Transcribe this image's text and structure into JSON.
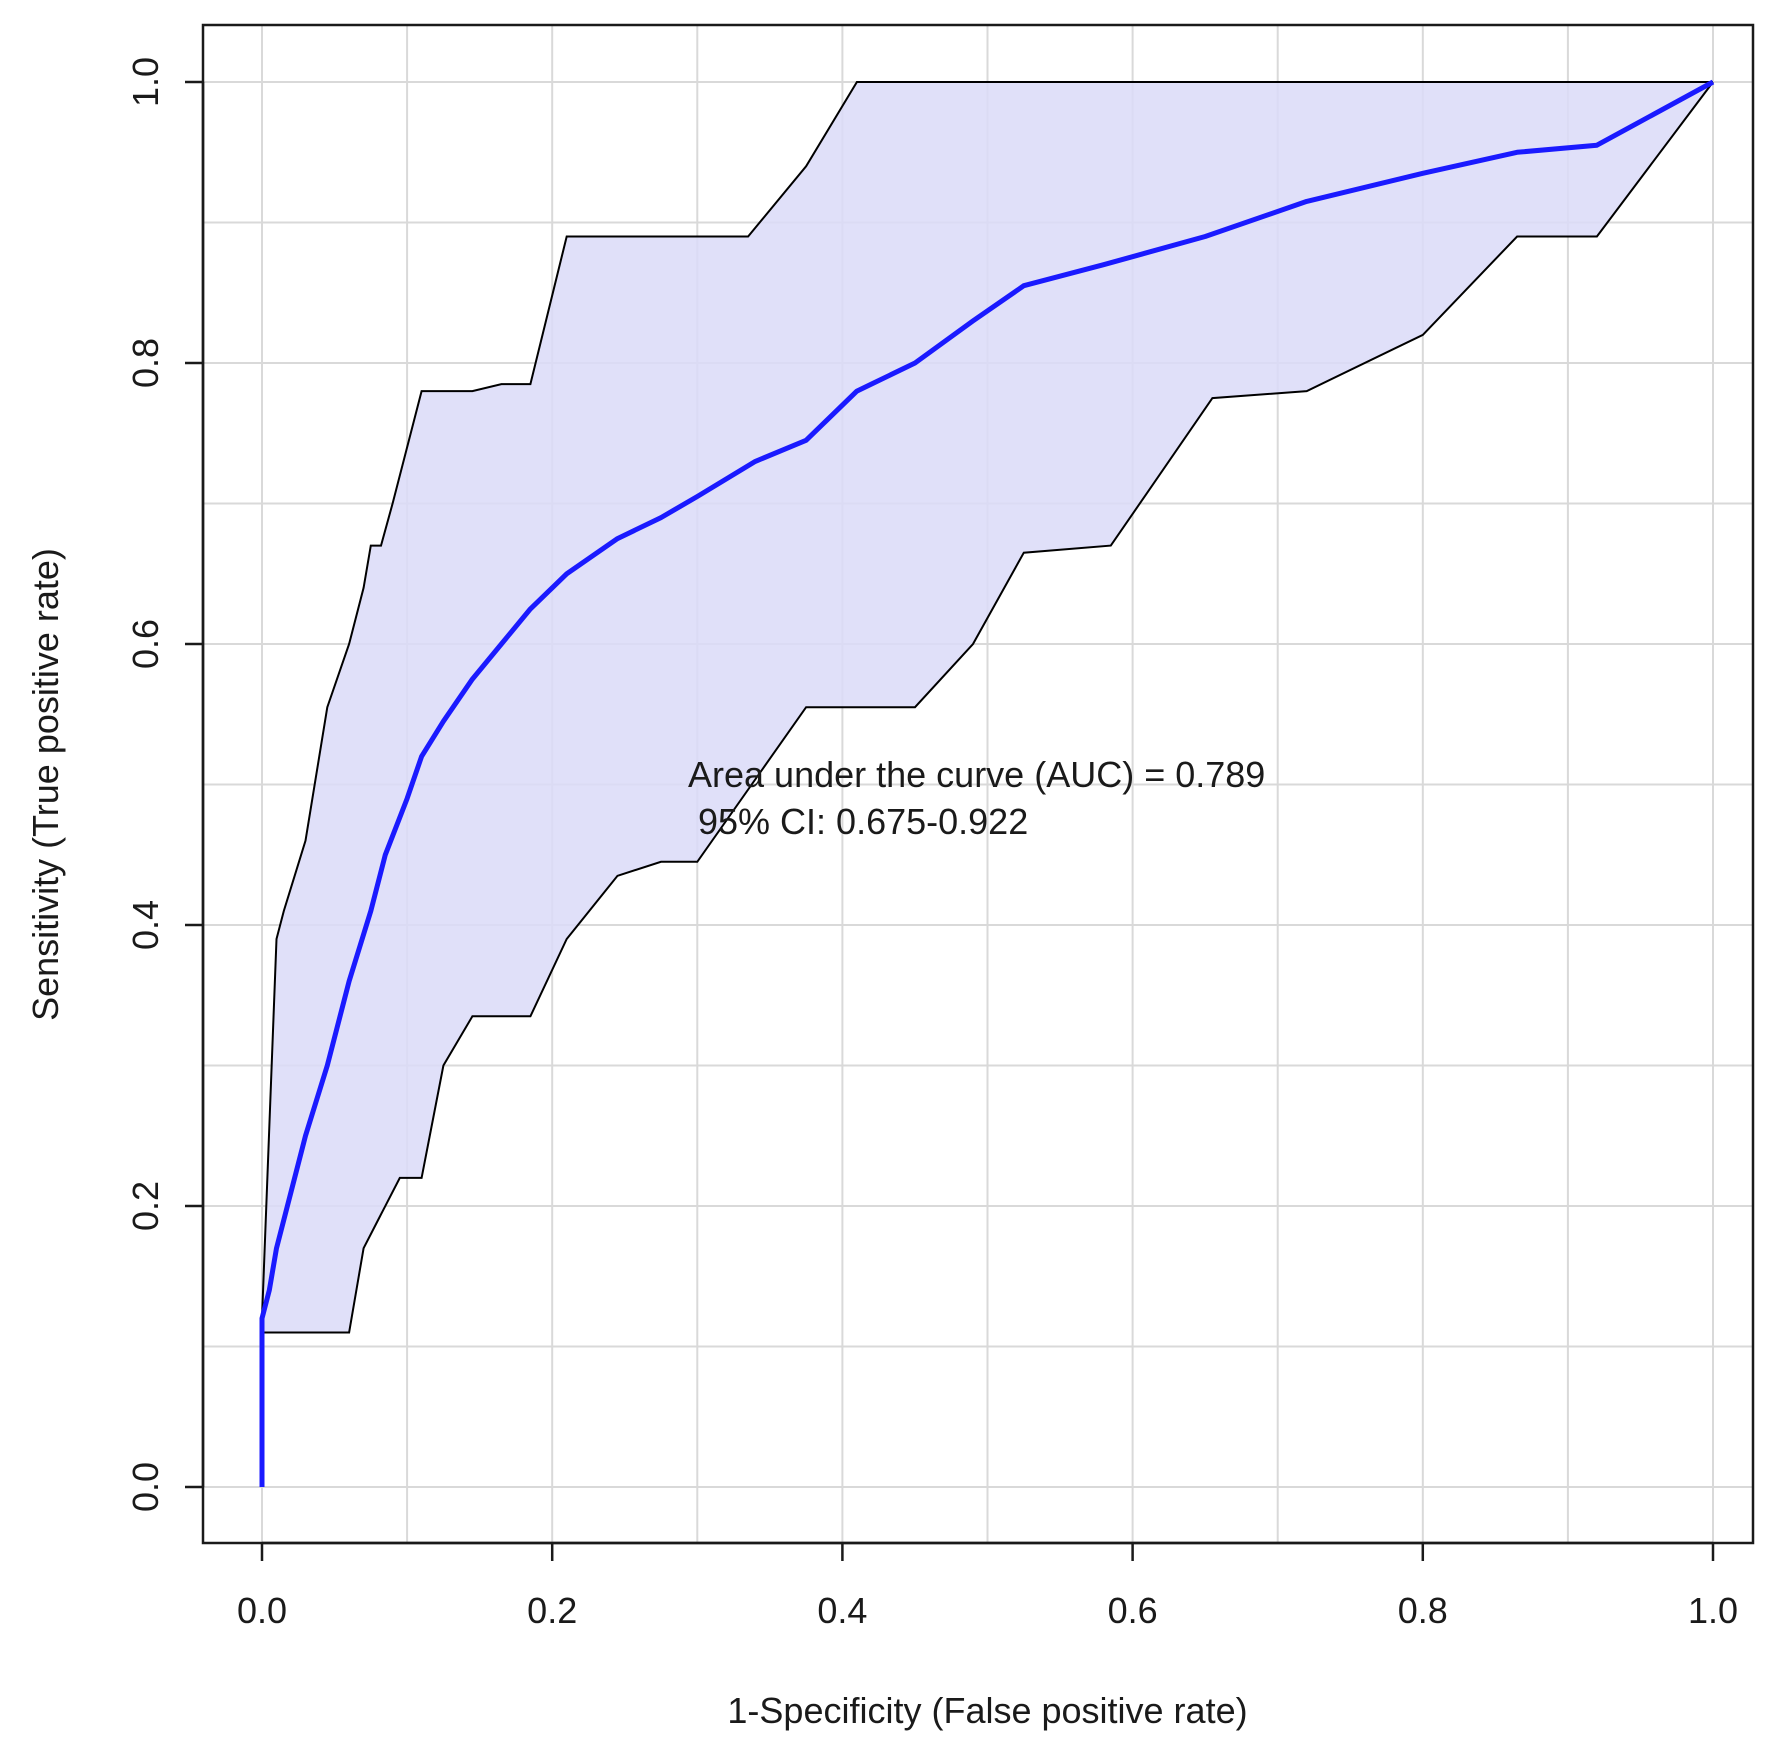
{
  "chart_data": {
    "type": "line",
    "xlabel": "1-Specificity (False positive rate)",
    "ylabel": "Sensitivity (True positive rate)",
    "xlim": [
      0,
      1
    ],
    "ylim": [
      0,
      1
    ],
    "x_ticks": [
      "0.0",
      "0.2",
      "0.4",
      "0.6",
      "0.8",
      "1.0"
    ],
    "y_ticks": [
      "0.0",
      "0.2",
      "0.4",
      "0.6",
      "0.8",
      "1.0"
    ],
    "grid": true,
    "annotation": {
      "line1": "Area under the curve (AUC) = 0.789",
      "line2": " 95% CI: 0.675-0.922"
    },
    "colors": {
      "roc_line": "#1a1aff",
      "ci_fill": "#dadaf8",
      "ci_border": "#000000",
      "grid": "#d9d9d9"
    },
    "series": [
      {
        "role": "roc",
        "x": [
          0.0,
          0.0,
          0.005,
          0.01,
          0.02,
          0.03,
          0.045,
          0.06,
          0.075,
          0.085,
          0.1,
          0.11,
          0.125,
          0.145,
          0.165,
          0.185,
          0.21,
          0.245,
          0.275,
          0.3,
          0.34,
          0.375,
          0.41,
          0.45,
          0.49,
          0.525,
          0.58,
          0.65,
          0.72,
          0.8,
          0.865,
          0.92,
          1.0
        ],
        "y": [
          0.0,
          0.12,
          0.14,
          0.17,
          0.21,
          0.25,
          0.3,
          0.36,
          0.41,
          0.45,
          0.49,
          0.52,
          0.545,
          0.575,
          0.6,
          0.625,
          0.65,
          0.675,
          0.69,
          0.705,
          0.73,
          0.745,
          0.78,
          0.8,
          0.83,
          0.855,
          0.87,
          0.89,
          0.915,
          0.935,
          0.95,
          0.955,
          1.0
        ]
      },
      {
        "role": "ci_upper",
        "x": [
          0.0,
          0.0,
          0.01,
          0.015,
          0.03,
          0.045,
          0.06,
          0.07,
          0.075,
          0.082,
          0.09,
          0.11,
          0.145,
          0.165,
          0.185,
          0.21,
          0.3,
          0.335,
          0.375,
          0.41,
          1.0
        ],
        "y": [
          0.0,
          0.12,
          0.39,
          0.41,
          0.46,
          0.555,
          0.6,
          0.64,
          0.67,
          0.67,
          0.7,
          0.78,
          0.78,
          0.785,
          0.785,
          0.89,
          0.89,
          0.89,
          0.94,
          1.0,
          1.0
        ]
      },
      {
        "role": "ci_lower",
        "x": [
          0.0,
          0.0,
          0.06,
          0.07,
          0.08,
          0.095,
          0.11,
          0.125,
          0.145,
          0.185,
          0.21,
          0.245,
          0.275,
          0.3,
          0.375,
          0.45,
          0.49,
          0.525,
          0.585,
          0.655,
          0.72,
          0.8,
          0.865,
          0.92,
          1.0
        ],
        "y": [
          0.0,
          0.11,
          0.11,
          0.17,
          0.19,
          0.22,
          0.22,
          0.3,
          0.335,
          0.335,
          0.39,
          0.435,
          0.445,
          0.445,
          0.555,
          0.555,
          0.6,
          0.665,
          0.67,
          0.775,
          0.78,
          0.82,
          0.89,
          0.89,
          1.0
        ]
      }
    ]
  }
}
